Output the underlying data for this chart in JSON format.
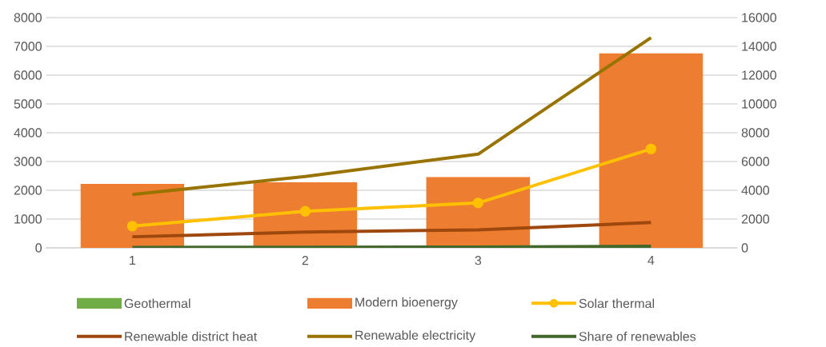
{
  "chart_data": {
    "type": "bar",
    "categories": [
      "1",
      "2",
      "3",
      "4"
    ],
    "stacked": true,
    "series": [
      {
        "name": "Geothermal",
        "color": "#70ad47",
        "values": [
          null,
          20,
          30,
          null
        ]
      },
      {
        "name": "Modern bioenergy",
        "color": "#ed7d31",
        "values": [
          2220,
          2260,
          2430,
          6760
        ]
      },
      {
        "name": "Solar thermal",
        "type": "line",
        "axis": "y2",
        "marker": "circle",
        "color": "#ffc000",
        "values": [
          1510,
          2540,
          3120,
          6870
        ]
      },
      {
        "name": "Renewable district heat",
        "type": "line",
        "axis": "y2",
        "color": "#9e480e",
        "values": [
          770,
          1100,
          1250,
          1760
        ]
      },
      {
        "name": "Renewable electricity",
        "type": "line",
        "axis": "y2",
        "color": "#997300",
        "values": [
          3710,
          4960,
          6510,
          14600
        ]
      },
      {
        "name": "Share of renewables",
        "type": "line",
        "axis": "y2",
        "color": "#43682b",
        "values": [
          30,
          40,
          60,
          110
        ]
      }
    ],
    "ylim": [
      0,
      8000
    ],
    "yticks": [
      0,
      1000,
      2000,
      3000,
      4000,
      5000,
      6000,
      7000,
      8000
    ],
    "y2lim": [
      0,
      16000
    ],
    "y2ticks": [
      0,
      2000,
      4000,
      6000,
      8000,
      10000,
      12000,
      14000,
      16000
    ],
    "grid": "y",
    "legend": "bottom"
  }
}
